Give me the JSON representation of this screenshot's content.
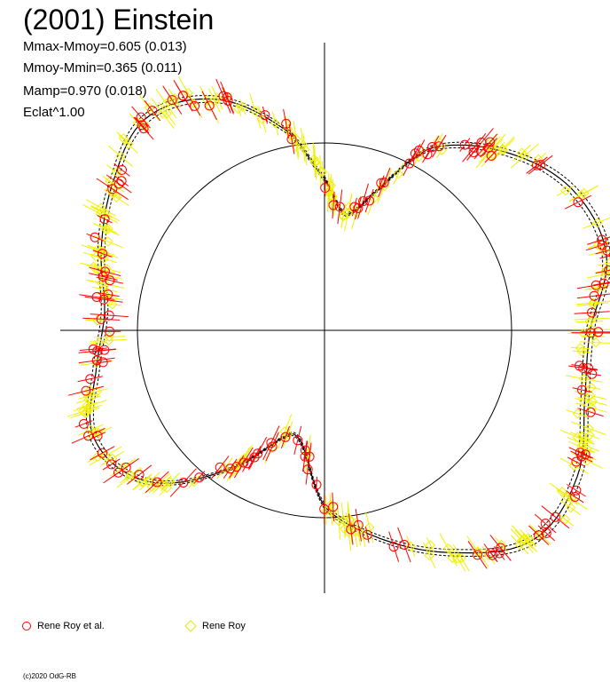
{
  "title": "(2001) Einstein",
  "stats": {
    "line1": "Mmax-Mmoy=0.605 (0.013)",
    "line2": "Mmoy-Mmin=0.365 (0.011)",
    "line3": "Mamp=0.970 (0.018)",
    "line4": "Eclat^1.00"
  },
  "legend": {
    "series1": "Rene Roy et al.",
    "series2": "Rene Roy"
  },
  "copyright": "(c)2020 OdG-RB",
  "colors": {
    "series1": "#ff0000",
    "series2": "#ffff00",
    "axes": "#000000",
    "background": "#ffffff"
  },
  "chart_data": {
    "type": "scatter",
    "projection": "polar",
    "reference_circle_radius": 1.0,
    "mmax_minus_mmoy": 0.605,
    "mmoy_minus_mmin": 0.365,
    "amplitude": 0.97,
    "curve_radius": [
      {
        "angle_deg": 0,
        "r": 0.81
      },
      {
        "angle_deg": 10,
        "r": 0.63
      },
      {
        "angle_deg": 20,
        "r": 0.78
      },
      {
        "angle_deg": 30,
        "r": 1.12
      },
      {
        "angle_deg": 45,
        "r": 1.35
      },
      {
        "angle_deg": 60,
        "r": 1.52
      },
      {
        "angle_deg": 75,
        "r": 1.56
      },
      {
        "angle_deg": 90,
        "r": 1.42
      },
      {
        "angle_deg": 105,
        "r": 1.44
      },
      {
        "angle_deg": 120,
        "r": 1.56
      },
      {
        "angle_deg": 135,
        "r": 1.58
      },
      {
        "angle_deg": 150,
        "r": 1.37
      },
      {
        "angle_deg": 165,
        "r": 1.15
      },
      {
        "angle_deg": 180,
        "r": 0.94
      },
      {
        "angle_deg": 190,
        "r": 0.64
      },
      {
        "angle_deg": 200,
        "r": 0.6
      },
      {
        "angle_deg": 215,
        "r": 0.91
      },
      {
        "angle_deg": 230,
        "r": 1.25
      },
      {
        "angle_deg": 245,
        "r": 1.36
      },
      {
        "angle_deg": 260,
        "r": 1.24
      },
      {
        "angle_deg": 275,
        "r": 1.18
      },
      {
        "angle_deg": 290,
        "r": 1.27
      },
      {
        "angle_deg": 305,
        "r": 1.38
      },
      {
        "angle_deg": 320,
        "r": 1.48
      },
      {
        "angle_deg": 335,
        "r": 1.36
      },
      {
        "angle_deg": 350,
        "r": 1.07
      },
      {
        "angle_deg": 360,
        "r": 0.81
      }
    ],
    "series": [
      {
        "name": "Rene Roy et al.",
        "marker": "circle",
        "color": "#ff0000",
        "count": 130
      },
      {
        "name": "Rene Roy",
        "marker": "diamond",
        "color": "#ffff00",
        "count": 210
      }
    ]
  }
}
